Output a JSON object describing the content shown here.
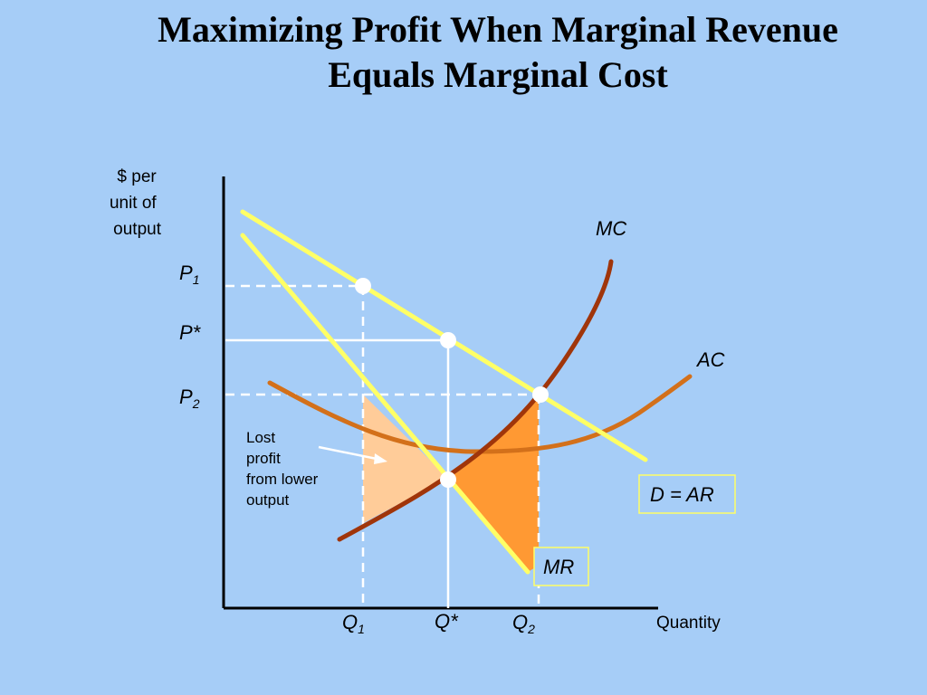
{
  "title": {
    "line1": "Maximizing Profit When Marginal Revenue",
    "line2": "Equals Marginal Cost"
  },
  "y_axis_label": [
    "$ per",
    "unit of",
    "output"
  ],
  "x_axis_label": "Quantity",
  "price_labels": {
    "p1": {
      "base": "P",
      "sub": "1"
    },
    "pstar": {
      "base": "P*",
      "sub": ""
    },
    "p2": {
      "base": "P",
      "sub": "2"
    }
  },
  "quantity_labels": {
    "q1": {
      "base": "Q",
      "sub": "1"
    },
    "qstar": {
      "base": "Q*",
      "sub": ""
    },
    "q2": {
      "base": "Q",
      "sub": "2"
    }
  },
  "curve_labels": {
    "mc": "MC",
    "ac": "AC",
    "demand": "D = AR",
    "mr": "MR"
  },
  "annotation": [
    "Lost",
    "profit",
    "from lower",
    "output"
  ],
  "colors": {
    "background": "#a6cdf7",
    "demand_mr": "#ffff66",
    "mc": "#a0350a",
    "ac": "#d3701a",
    "lost_profit_left": "#ffcc99",
    "lost_profit_right": "#ff9933"
  }
}
